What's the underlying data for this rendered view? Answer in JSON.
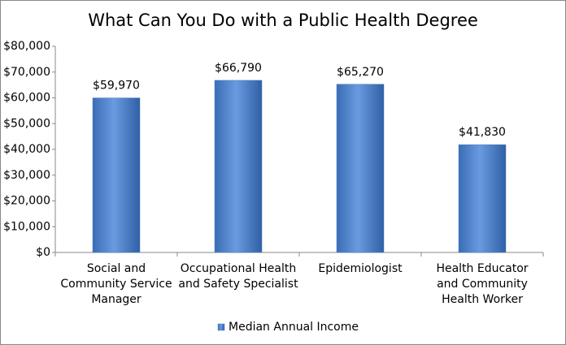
{
  "chart_data": {
    "type": "bar",
    "title": "What Can You Do with a Public Health Degree",
    "categories": [
      "Social and Community Service Manager",
      "Occupational Health and Safety Specialist",
      "Epidemiologist",
      "Health Educator and Community Health Worker"
    ],
    "series": [
      {
        "name": "Median Annual Income",
        "color": "#4f81bd",
        "values": [
          59970,
          66790,
          65270,
          41830
        ],
        "value_labels": [
          "$59,970",
          "$66,790",
          "$65,270",
          "$41,830"
        ]
      }
    ],
    "ylim": [
      0,
      80000
    ],
    "yticks": [
      {
        "value": 0,
        "label": "$0"
      },
      {
        "value": 10000,
        "label": "$10,000"
      },
      {
        "value": 20000,
        "label": "$20,000"
      },
      {
        "value": 30000,
        "label": "$30,000"
      },
      {
        "value": 40000,
        "label": "$40,000"
      },
      {
        "value": 50000,
        "label": "$50,000"
      },
      {
        "value": 60000,
        "label": "$60,000"
      },
      {
        "value": 70000,
        "label": "$70,000"
      },
      {
        "value": 80000,
        "label": "$80,000"
      }
    ],
    "grid": false,
    "legend": "bottom"
  }
}
